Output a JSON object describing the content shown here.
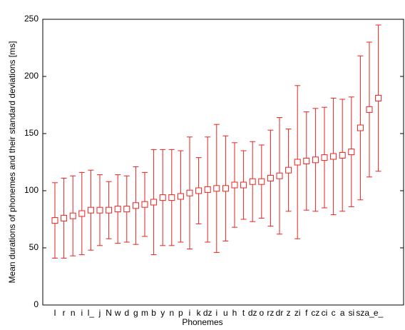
{
  "chart_data": {
    "type": "errorbar",
    "x_label": "Phonemes",
    "y_label": "Mean durations of phonemes and their standard deviations [ms]",
    "categories": [
      "I",
      "r",
      "n",
      "i",
      "l_",
      "j",
      "N",
      "w",
      "d",
      "g",
      "m",
      "b",
      "y",
      "n",
      "p",
      "i",
      "k",
      "dz",
      "i",
      "u",
      "h",
      "t",
      "dz",
      "o",
      "rz",
      "dr",
      "z",
      "zi",
      "f",
      "cz",
      "ci",
      "c",
      "a",
      "si",
      "sz",
      "a_",
      "e_"
    ],
    "values": [
      74,
      76,
      78,
      80,
      83,
      83,
      83,
      84,
      84,
      87,
      88,
      90,
      94,
      94,
      95,
      98,
      100,
      101,
      102,
      102,
      105,
      105,
      108,
      108,
      111,
      113,
      118,
      125,
      126,
      127,
      129,
      130,
      131,
      134,
      155,
      171,
      181
    ],
    "errors": [
      33,
      35,
      35,
      36,
      35,
      31,
      25,
      30,
      29,
      34,
      28,
      46,
      42,
      42,
      40,
      49,
      29,
      46,
      56,
      46,
      37,
      30,
      35,
      32,
      42,
      51,
      36,
      67,
      43,
      45,
      44,
      51,
      49,
      48,
      63,
      59,
      64
    ],
    "color": "#e8231f",
    "ylim": [
      0,
      250
    ],
    "yticks": [
      0,
      50,
      100,
      150,
      200,
      250
    ]
  }
}
